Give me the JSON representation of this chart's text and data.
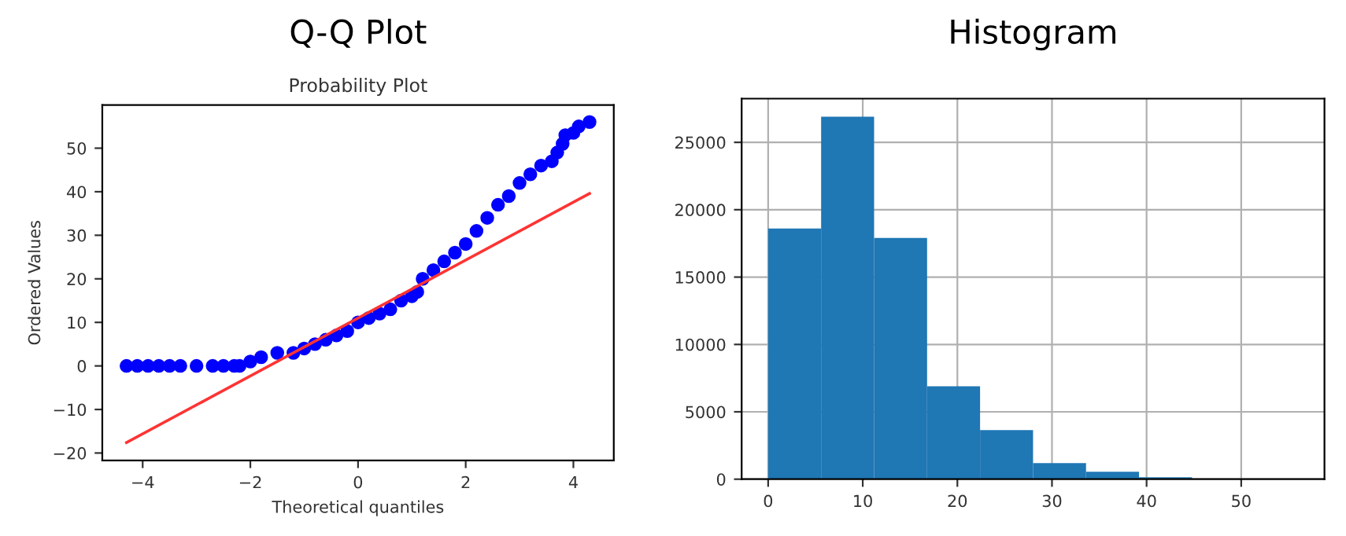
{
  "chart_data": [
    {
      "type": "scatter",
      "title": "Q-Q Plot",
      "subtitle": "Probability Plot",
      "xlabel": "Theoretical quantiles",
      "ylabel": "Ordered Values",
      "series": [
        {
          "type": "scatter",
          "color": "#0000ff",
          "marker": "circle",
          "x": [
            -4.3,
            -4.1,
            -3.9,
            -3.7,
            -3.5,
            -3.3,
            -3.0,
            -2.7,
            -2.5,
            -2.3,
            -2.2,
            -2.0,
            -1.8,
            -1.5,
            -1.2,
            -1.0,
            -0.8,
            -0.6,
            -0.4,
            -0.2,
            0,
            0.2,
            0.4,
            0.6,
            0.8,
            1.0,
            1.1,
            1.2,
            1.4,
            1.6,
            1.8,
            2.0,
            2.2,
            2.4,
            2.6,
            2.8,
            3.0,
            3.2,
            3.4,
            3.6,
            3.7,
            3.8,
            3.85,
            4.0,
            4.1,
            4.3
          ],
          "values": [
            0,
            0,
            0,
            0,
            0,
            0,
            0,
            0,
            0,
            0,
            0,
            1,
            2,
            3,
            3,
            4,
            5,
            6,
            7,
            8,
            10,
            11,
            12,
            13,
            15,
            16,
            17,
            20,
            22,
            24,
            26,
            28,
            31,
            34,
            37,
            39,
            42,
            44,
            46,
            47,
            49,
            51,
            53,
            53.5,
            55,
            56
          ]
        },
        {
          "type": "line",
          "color": "#ff3333",
          "marker": "none",
          "x": [
            -4.3,
            4.3
          ],
          "values": [
            -17.6,
            39.6
          ]
        }
      ],
      "xlim": [
        -4.75,
        4.75
      ],
      "ylim": [
        -21.7,
        59.9
      ],
      "xticks": [
        {
          "value": -4,
          "label": "−4"
        },
        {
          "value": -2,
          "label": "−2"
        },
        0,
        2,
        4
      ],
      "yticks": [
        {
          "value": -20,
          "label": "−20"
        },
        {
          "value": -10,
          "label": "−10"
        },
        0,
        10,
        20,
        30,
        40,
        50
      ],
      "grid": false
    },
    {
      "type": "histogram",
      "title": "Histogram",
      "color": "#1f77b4",
      "bins": [
        0,
        5.6,
        11.2,
        16.8,
        22.4,
        28,
        33.6,
        39.2,
        44.8,
        50.4,
        56
      ],
      "values": [
        18600,
        26900,
        17900,
        6900,
        3650,
        1200,
        550,
        150,
        30,
        10
      ],
      "xlim": [
        -2.8,
        58.8
      ],
      "ylim": [
        0,
        28245
      ],
      "xticks": [
        0,
        10,
        20,
        30,
        40,
        50
      ],
      "yticks": [
        0,
        5000,
        10000,
        15000,
        20000,
        25000
      ],
      "grid": true
    }
  ]
}
